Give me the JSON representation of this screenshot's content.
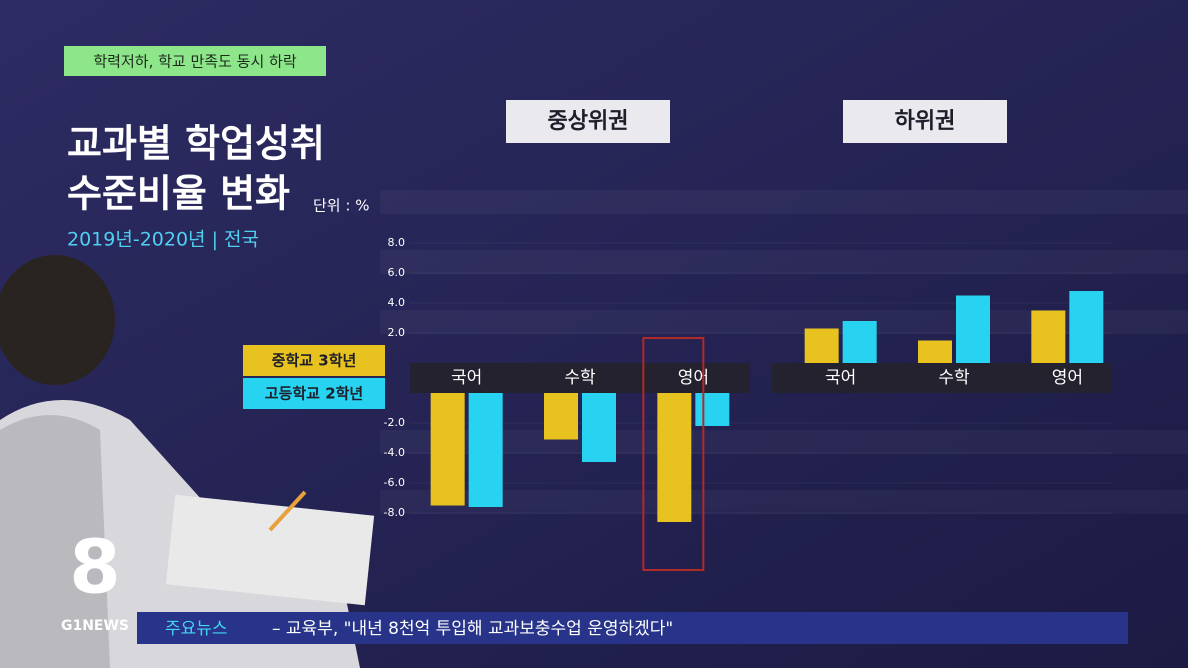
{
  "header_tag": "학력저하, 학교 만족도 동시 하락",
  "chart_data": {
    "type": "bar",
    "title": [
      "교과별 학업성취",
      "수준비율 변화"
    ],
    "unit": "단위 : %",
    "subtitle": "2019년-2020년 | 전국",
    "panels": [
      "중상위권",
      "하위권"
    ],
    "categories": [
      "국어",
      "수학",
      "영어",
      "국어",
      "수학",
      "영어"
    ],
    "series": [
      {
        "name": "중학교 3학년",
        "color": "#e8c21e",
        "values": [
          -7.5,
          -3.1,
          -8.6,
          2.3,
          1.5,
          3.5
        ]
      },
      {
        "name": "고등학교 2학년",
        "color": "#27d3f0",
        "values": [
          -7.6,
          -4.6,
          -2.2,
          2.8,
          4.5,
          4.8
        ]
      }
    ],
    "ylim": [
      -8,
      8
    ],
    "yticks": [
      {
        "value": 8,
        "label": "8.0"
      },
      {
        "value": 6,
        "label": "6.0"
      },
      {
        "value": 4,
        "label": "4.0"
      },
      {
        "value": 2,
        "label": "2.0"
      },
      {
        "value": -2,
        "label": "-2.0"
      },
      {
        "value": -4,
        "label": "-4.0"
      },
      {
        "value": -6,
        "label": "-6.0"
      },
      {
        "value": -8,
        "label": "-8.0"
      }
    ],
    "highlight_category": 2
  },
  "logo": {
    "number": "8",
    "brand": "G1NEWS"
  },
  "ticker": {
    "label": "주요뉴스",
    "text": "– 교육부, \"내년 8천억 투입해 교과보충수업 운영하겠다\""
  }
}
